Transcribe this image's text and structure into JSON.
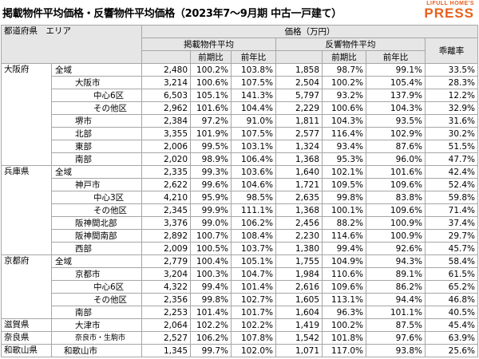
{
  "header": {
    "title": "掲載物件平均価格・反響物件平均価格（2023年7～9月期 中古一戸建て）",
    "logo_top": "LIFULL HOME'S",
    "logo_bottom": "PRESS"
  },
  "table": {
    "columns": {
      "prefecture": "都道府県",
      "area": "エリア",
      "price": "価格（万円）",
      "listing": "掲載物件平均",
      "response": "反響物件平均",
      "gap": "乖離率",
      "qoq": "前期比",
      "yoy": "前年比"
    },
    "groups": [
      {
        "prefecture": "大阪府",
        "rows": [
          [
            "全域",
            "2,480",
            "100.2%",
            "103.8%",
            "1,858",
            "98.7%",
            "99.1%",
            "33.5%"
          ],
          [
            "大阪市",
            "3,214",
            "100.6%",
            "107.5%",
            "2,504",
            "100.2%",
            "105.4%",
            "28.3%"
          ],
          [
            "中心6区",
            "6,503",
            "105.1%",
            "141.3%",
            "5,797",
            "93.2%",
            "137.9%",
            "12.2%"
          ],
          [
            "その他区",
            "2,962",
            "101.6%",
            "104.4%",
            "2,229",
            "100.6%",
            "104.3%",
            "32.9%"
          ],
          [
            "堺市",
            "2,384",
            "97.2%",
            "91.0%",
            "1,811",
            "104.3%",
            "93.5%",
            "31.6%"
          ],
          [
            "北部",
            "3,355",
            "101.9%",
            "107.5%",
            "2,577",
            "116.4%",
            "102.9%",
            "30.2%"
          ],
          [
            "東部",
            "2,006",
            "99.5%",
            "103.1%",
            "1,324",
            "93.4%",
            "87.6%",
            "51.5%"
          ],
          [
            "南部",
            "2,020",
            "98.9%",
            "106.4%",
            "1,368",
            "95.3%",
            "96.0%",
            "47.7%"
          ]
        ]
      },
      {
        "prefecture": "兵庫県",
        "rows": [
          [
            "全域",
            "2,335",
            "99.3%",
            "103.6%",
            "1,640",
            "102.1%",
            "101.6%",
            "42.4%"
          ],
          [
            "神戸市",
            "2,622",
            "99.6%",
            "104.6%",
            "1,721",
            "109.5%",
            "109.6%",
            "52.4%"
          ],
          [
            "中心3区",
            "4,210",
            "95.9%",
            "98.5%",
            "2,635",
            "99.8%",
            "83.8%",
            "59.8%"
          ],
          [
            "その他区",
            "2,345",
            "99.9%",
            "111.1%",
            "1,368",
            "100.1%",
            "109.6%",
            "71.4%"
          ],
          [
            "阪神間北部",
            "3,376",
            "99.0%",
            "106.2%",
            "2,456",
            "88.2%",
            "100.9%",
            "37.4%"
          ],
          [
            "阪神間南部",
            "2,892",
            "100.7%",
            "108.4%",
            "2,230",
            "114.6%",
            "100.9%",
            "29.7%"
          ],
          [
            "西部",
            "2,009",
            "100.5%",
            "103.7%",
            "1,380",
            "99.4%",
            "92.6%",
            "45.7%"
          ]
        ]
      },
      {
        "prefecture": "京都府",
        "rows": [
          [
            "全域",
            "2,779",
            "100.4%",
            "105.1%",
            "1,755",
            "104.9%",
            "94.3%",
            "58.4%"
          ],
          [
            "京都市",
            "3,204",
            "100.3%",
            "104.7%",
            "1,984",
            "110.6%",
            "89.1%",
            "61.5%"
          ],
          [
            "中心6区",
            "4,322",
            "99.4%",
            "101.4%",
            "2,616",
            "109.6%",
            "86.2%",
            "65.2%"
          ],
          [
            "その他区",
            "2,356",
            "99.8%",
            "102.7%",
            "1,605",
            "113.1%",
            "94.4%",
            "46.8%"
          ],
          [
            "南部",
            "2,253",
            "101.4%",
            "101.7%",
            "1,604",
            "96.3%",
            "101.1%",
            "40.5%"
          ]
        ]
      },
      {
        "prefecture": "滋賀県",
        "rows": [
          [
            "大津市",
            "2,064",
            "102.2%",
            "102.2%",
            "1,419",
            "100.2%",
            "87.5%",
            "45.4%"
          ]
        ]
      },
      {
        "prefecture": "奈良県",
        "rows": [
          [
            "奈良市・生駒市",
            "2,527",
            "106.2%",
            "107.8%",
            "1,542",
            "101.8%",
            "97.6%",
            "63.9%"
          ]
        ]
      },
      {
        "prefecture": "和歌山県",
        "rows": [
          [
            "和歌山市",
            "1,345",
            "99.7%",
            "102.0%",
            "1,071",
            "117.0%",
            "93.8%",
            "25.6%"
          ]
        ]
      }
    ]
  }
}
